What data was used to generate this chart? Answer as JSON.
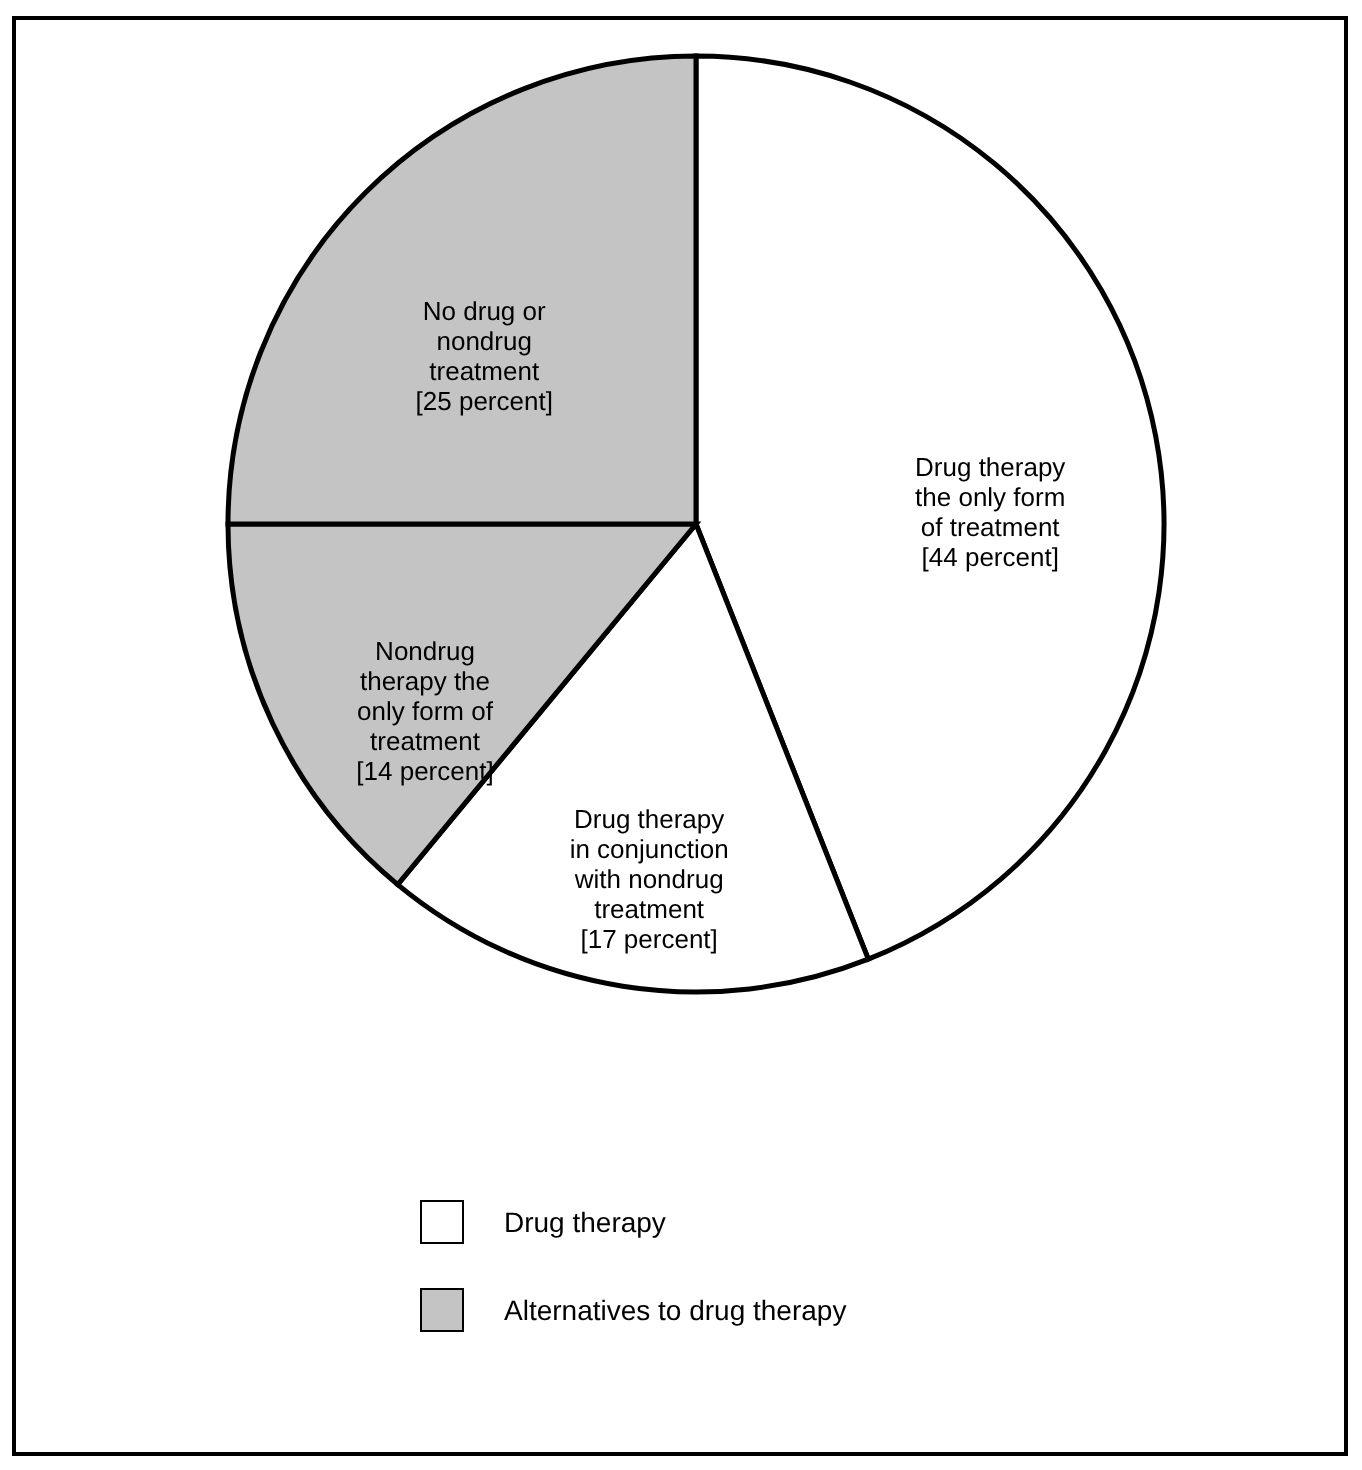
{
  "chart_data": {
    "type": "pie",
    "categories": [
      "Drug therapy the only form of treatment",
      "Drug therapy in conjunction with nondrug treatment",
      "Nondrug therapy the only form of treatment",
      "No drug or nondrug treatment"
    ],
    "values": [
      44,
      17,
      14,
      25
    ],
    "value_labels": [
      "[44 percent]",
      "[17 percent]",
      "[14 percent]",
      "[25 percent]"
    ],
    "colors": [
      "#ffffff",
      "#ffffff",
      "#c4c4c4",
      "#c4c4c4"
    ],
    "annotations": [
      "Drug therapy",
      "Alternatives to drug therapy"
    ]
  }
}
